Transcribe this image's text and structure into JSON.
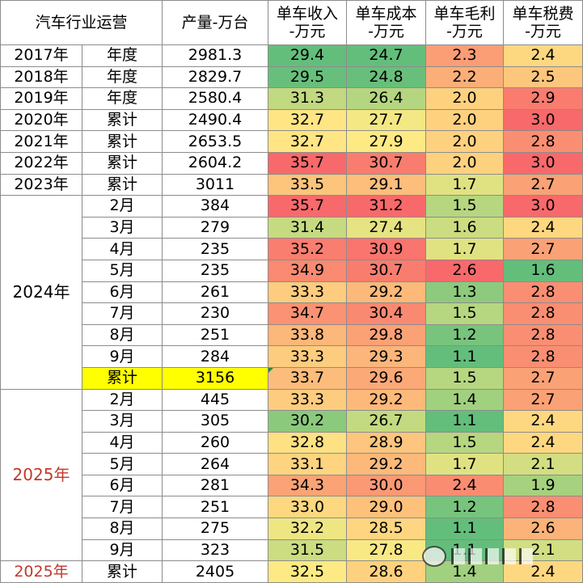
{
  "chart_data": {
    "type": "table",
    "columns": [
      "汽车行业运营",
      "",
      "产量-万台",
      "单车收入\n-万元",
      "单车成本\n-万元",
      "单车毛利\n-万元",
      "单车税费\n-万元"
    ],
    "header": {
      "col1": "汽车行业运营",
      "col3": "产量-万台",
      "col4": [
        "单车收入",
        "-万元"
      ],
      "col5": [
        "单车成本",
        "-万元"
      ],
      "col6": [
        "单车毛利",
        "-万元"
      ],
      "col7": [
        "单车税费",
        "-万元"
      ]
    },
    "year_groups": [
      {
        "year": "2017年",
        "rows": [
          {
            "period": "年度",
            "output": "2981.3",
            "income": 29.4,
            "cost": 24.7,
            "margin": 2.3,
            "tax": 2.4
          }
        ]
      },
      {
        "year": "2018年",
        "rows": [
          {
            "period": "年度",
            "output": "2829.7",
            "income": 29.5,
            "cost": 24.8,
            "margin": 2.2,
            "tax": 2.5
          }
        ]
      },
      {
        "year": "2019年",
        "rows": [
          {
            "period": "年度",
            "output": "2580.4",
            "income": 31.3,
            "cost": 26.4,
            "margin": 2.0,
            "tax": 2.9
          }
        ]
      },
      {
        "year": "2020年",
        "rows": [
          {
            "period": "累计",
            "output": "2490.4",
            "income": 32.7,
            "cost": 27.7,
            "margin": 2.0,
            "tax": 3.0
          }
        ]
      },
      {
        "year": "2021年",
        "rows": [
          {
            "period": "累计",
            "output": "2653.5",
            "income": 32.7,
            "cost": 27.9,
            "margin": 2.0,
            "tax": 2.8
          }
        ]
      },
      {
        "year": "2022年",
        "rows": [
          {
            "period": "累计",
            "output": "2604.2",
            "income": 35.7,
            "cost": 30.7,
            "margin": 2.0,
            "tax": 3.0
          }
        ]
      },
      {
        "year": "2023年",
        "rows": [
          {
            "period": "累计",
            "output": "3011",
            "income": 33.5,
            "cost": 29.1,
            "margin": 1.7,
            "tax": 2.7
          }
        ]
      },
      {
        "year": "2024年",
        "rows": [
          {
            "period": "2月",
            "output": "384",
            "income": 35.7,
            "cost": 31.2,
            "margin": 1.5,
            "tax": 3.0
          },
          {
            "period": "3月",
            "output": "279",
            "income": 31.4,
            "cost": 27.4,
            "margin": 1.6,
            "tax": 2.4
          },
          {
            "period": "4月",
            "output": "235",
            "income": 35.2,
            "cost": 30.9,
            "margin": 1.7,
            "tax": 2.7
          },
          {
            "period": "5月",
            "output": "235",
            "income": 34.9,
            "cost": 30.7,
            "margin": 2.6,
            "tax": 1.6
          },
          {
            "period": "6月",
            "output": "261",
            "income": 33.3,
            "cost": 29.2,
            "margin": 1.3,
            "tax": 2.8
          },
          {
            "period": "7月",
            "output": "230",
            "income": 34.7,
            "cost": 30.4,
            "margin": 1.5,
            "tax": 2.8
          },
          {
            "period": "8月",
            "output": "251",
            "income": 33.8,
            "cost": 29.8,
            "margin": 1.2,
            "tax": 2.8
          },
          {
            "period": "9月",
            "output": "284",
            "income": 33.3,
            "cost": 29.3,
            "margin": 1.1,
            "tax": 2.8
          },
          {
            "period": "累计",
            "output": "3156",
            "income": 33.7,
            "cost": 29.6,
            "margin": 1.5,
            "tax": 2.7,
            "highlight": true
          }
        ]
      },
      {
        "year": "2025年",
        "red": true,
        "rows": [
          {
            "period": "2月",
            "output": "445",
            "income": 33.3,
            "cost": 29.2,
            "margin": 1.4,
            "tax": 2.7
          },
          {
            "period": "3月",
            "output": "305",
            "income": 30.2,
            "cost": 26.7,
            "margin": 1.1,
            "tax": 2.4
          },
          {
            "period": "4月",
            "output": "260",
            "income": 32.8,
            "cost": 28.9,
            "margin": 1.5,
            "tax": 2.4
          },
          {
            "period": "5月",
            "output": "264",
            "income": 33.1,
            "cost": 29.2,
            "margin": 1.7,
            "tax": 2.1
          },
          {
            "period": "6月",
            "output": "281",
            "income": 34.3,
            "cost": 30.0,
            "margin": 2.4,
            "tax": 1.9
          },
          {
            "period": "7月",
            "output": "251",
            "income": 33.0,
            "cost": 29.0,
            "margin": 1.2,
            "tax": 2.8
          },
          {
            "period": "8月",
            "output": "275",
            "income": 32.2,
            "cost": 28.5,
            "margin": 1.1,
            "tax": 2.6
          },
          {
            "period": "9月",
            "output": "323",
            "income": 31.5,
            "cost": 27.8,
            "margin": 1.1,
            "tax": 2.1
          }
        ]
      },
      {
        "year": "2025年",
        "red": true,
        "rows": [
          {
            "period": "累计",
            "output": "2405",
            "income": 32.5,
            "cost": 28.6,
            "margin": 1.4,
            "tax": 2.4
          }
        ]
      }
    ],
    "color_scales": {
      "income": {
        "low": "#63be7b",
        "mid": "#ffeb84",
        "high": "#f8696b"
      },
      "cost": {
        "low": "#63be7b",
        "mid": "#ffeb84",
        "high": "#f8696b"
      },
      "margin": {
        "low": "#63be7b",
        "mid": "#ffeb84",
        "high": "#f8696b"
      },
      "tax": {
        "low": "#63be7b",
        "mid": "#ffeb84",
        "high": "#f8696b"
      }
    },
    "year_text_red": "#c0392b",
    "highlight_fill": "#ffff00"
  }
}
